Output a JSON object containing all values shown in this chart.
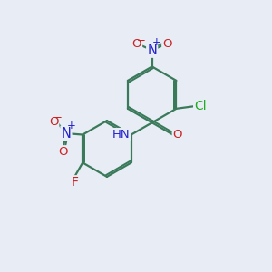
{
  "bg_color": "#e8edf5",
  "bond_color": "#3a7a5a",
  "bond_width": 1.6,
  "atom_colors": {
    "N": "#2222cc",
    "O": "#cc2222",
    "Cl": "#22aa22",
    "F": "#cc2222",
    "H": "#888888",
    "C": "#000000"
  },
  "font_size": 9.5
}
